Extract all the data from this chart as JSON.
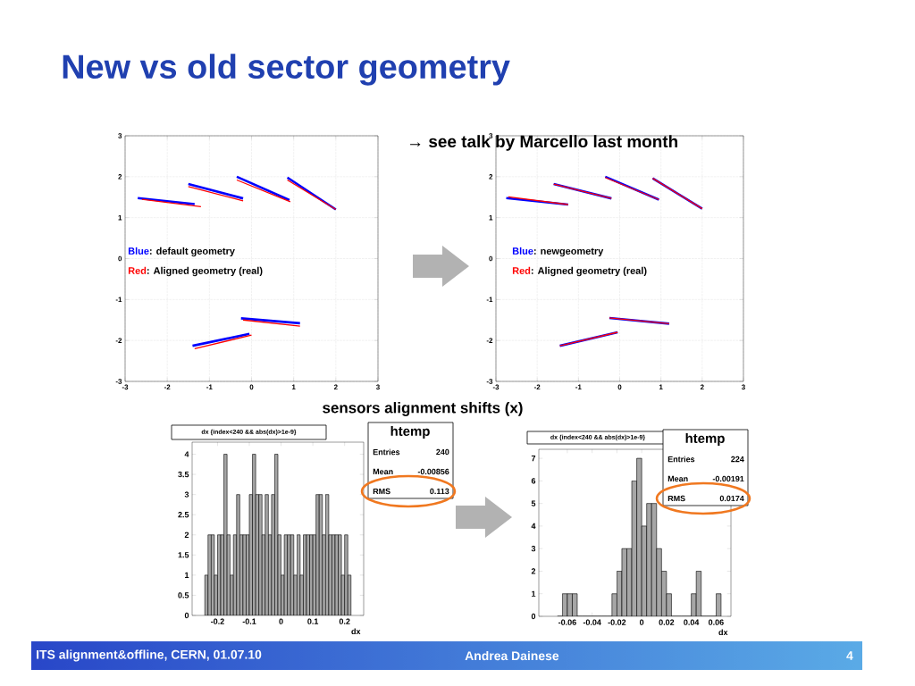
{
  "chart_data": [
    {
      "type": "line",
      "title": "New vs old sector geometry",
      "xlim": [
        -3,
        3
      ],
      "ylim": [
        -3,
        3
      ],
      "xticks": [
        -3,
        -2,
        -1,
        0,
        1,
        2,
        3
      ],
      "yticks": [
        -3,
        -2,
        -1,
        0,
        1,
        2,
        3
      ],
      "grid": true,
      "annotations": [
        "Blue",
        ":  default geometry",
        "Red",
        ": Aligned geometry (real)"
      ],
      "series": [
        {
          "color": "#0000ff",
          "x": [
            -2.7,
            -1.35,
            null,
            -1.5,
            -0.2,
            null,
            -0.35,
            0.9,
            null,
            0.85,
            2.0,
            null,
            -0.25,
            1.15,
            null,
            -1.4,
            -0.05
          ],
          "values": [
            1.48,
            1.33,
            null,
            1.82,
            1.47,
            null,
            2.0,
            1.43,
            null,
            1.98,
            1.2,
            null,
            -1.46,
            -1.58,
            null,
            -2.13,
            -1.84
          ]
        },
        {
          "color": "#ff0000",
          "x": [
            -2.6,
            -1.2,
            null,
            -1.5,
            -0.2,
            null,
            -0.35,
            0.92,
            null,
            0.85,
            2.0,
            null,
            -0.2,
            1.15,
            null,
            -1.35,
            0.0
          ],
          "values": [
            1.45,
            1.27,
            null,
            1.76,
            1.41,
            null,
            1.92,
            1.39,
            null,
            1.92,
            1.2,
            null,
            -1.5,
            -1.65,
            null,
            -2.2,
            -1.87
          ]
        }
      ]
    },
    {
      "type": "line",
      "xlim": [
        -3,
        3
      ],
      "ylim": [
        -3,
        3
      ],
      "xticks": [
        -3,
        -2,
        -1,
        0,
        1,
        2,
        3
      ],
      "yticks": [
        -3,
        -2,
        -1,
        0,
        1,
        2,
        3
      ],
      "grid": true,
      "annotations": [
        "→ see talk by Marcello last month",
        "Blue",
        ":  newgeometry",
        "Red",
        ": Aligned geometry (real)"
      ],
      "series": [
        {
          "color": "#0000ff",
          "x": [
            -2.75,
            -1.25,
            null,
            -1.6,
            -0.2,
            null,
            -0.35,
            0.95,
            null,
            0.8,
            2.0,
            null,
            -0.25,
            1.2,
            null,
            -1.45,
            -0.05
          ],
          "values": [
            1.48,
            1.32,
            null,
            1.82,
            1.47,
            null,
            2.0,
            1.44,
            null,
            1.96,
            1.22,
            null,
            -1.45,
            -1.59,
            null,
            -2.13,
            -1.8
          ]
        },
        {
          "color": "#ff0000",
          "x": [
            -2.7,
            -1.25,
            null,
            -1.6,
            -0.2,
            null,
            -0.35,
            0.95,
            null,
            0.8,
            2.0,
            null,
            -0.25,
            1.2,
            null,
            -1.45,
            -0.05
          ],
          "values": [
            1.51,
            1.32,
            null,
            1.82,
            1.47,
            null,
            1.98,
            1.44,
            null,
            1.96,
            1.22,
            null,
            -1.45,
            -1.59,
            null,
            -2.13,
            -1.8
          ]
        }
      ]
    },
    {
      "type": "histogram",
      "title": "dx {index<240 && abs(dx)>1e-9}",
      "xlabel": "dx",
      "color": "#000000",
      "xlim": [
        -0.28,
        0.26
      ],
      "ylim": [
        0,
        4.3
      ],
      "xticks": [
        -0.2,
        -0.1,
        0,
        0.1,
        0.2
      ],
      "yticks": [
        0,
        0.5,
        1,
        1.5,
        2,
        2.5,
        3,
        3.5,
        4
      ],
      "annotations": [
        "sensors alignment shifts (x)",
        "htemp",
        "Entries",
        "240",
        "Mean",
        "-0.00856",
        "RMS",
        "0.113"
      ],
      "bins": [
        -0.24,
        -0.23,
        -0.22,
        -0.21,
        -0.2,
        -0.19,
        -0.18,
        -0.17,
        -0.16,
        -0.15,
        -0.14,
        -0.13,
        -0.12,
        -0.11,
        -0.1,
        -0.09,
        -0.08,
        -0.07,
        -0.06,
        -0.05,
        -0.04,
        -0.03,
        -0.02,
        -0.01,
        0,
        0.01,
        0.02,
        0.03,
        0.04,
        0.05,
        0.06,
        0.07,
        0.08,
        0.09,
        0.1,
        0.11,
        0.12,
        0.13,
        0.14,
        0.15,
        0.16,
        0.17,
        0.18,
        0.19,
        0.2,
        0.21,
        0.22
      ],
      "values": [
        1,
        2,
        2,
        1,
        2,
        2,
        4,
        2,
        1,
        2,
        3,
        2,
        2,
        2,
        3,
        4,
        3,
        3,
        2,
        3,
        2,
        3,
        4,
        2,
        1,
        2,
        2,
        2,
        1,
        2,
        1,
        2,
        2,
        2,
        2,
        3,
        3,
        2,
        3,
        2,
        2,
        2,
        2,
        1,
        2,
        1
      ]
    },
    {
      "type": "histogram",
      "title": "dx {index<240 && abs(dx)>1e-9}",
      "xlabel": "dx",
      "color": "#000000",
      "xlim": [
        -0.083,
        0.072
      ],
      "ylim": [
        0,
        7.4
      ],
      "xticks": [
        -0.06,
        -0.04,
        -0.02,
        0,
        0.02,
        0.04,
        0.06
      ],
      "yticks": [
        0,
        1,
        2,
        3,
        4,
        5,
        6,
        7
      ],
      "annotations": [
        "htemp",
        "Entries",
        "224",
        "Mean",
        "-0.00191",
        "RMS",
        "0.0174",
        "ITS alignment&offline, CERN, 01.07.10",
        "Andrea Dainese",
        "4"
      ],
      "bins": [
        -0.068,
        -0.064,
        -0.06,
        -0.056,
        -0.052,
        -0.048,
        -0.044,
        -0.04,
        -0.036,
        -0.032,
        -0.028,
        -0.024,
        -0.02,
        -0.016,
        -0.012,
        -0.008,
        -0.004,
        0,
        0.004,
        0.008,
        0.012,
        0.016,
        0.02,
        0.024,
        0.028,
        0.032,
        0.036,
        0.04,
        0.044,
        0.048,
        0.052,
        0.056,
        0.06,
        0.064
      ],
      "values": [
        0,
        1,
        1,
        1,
        0,
        0,
        0,
        0,
        0,
        0,
        0,
        1,
        2,
        3,
        3,
        6,
        7,
        4,
        5,
        5,
        3,
        2,
        1,
        0,
        0,
        0,
        0,
        1,
        2,
        0,
        0,
        0,
        1
      ]
    }
  ]
}
